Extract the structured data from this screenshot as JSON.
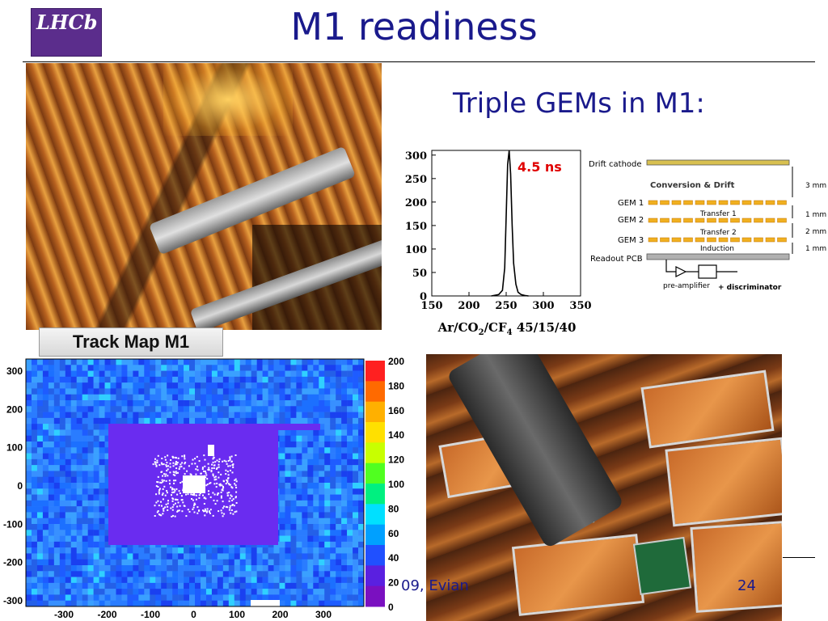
{
  "slide": {
    "title": "M1 readiness",
    "subtitle": "Triple GEMs in M1:",
    "logo_text": "LHCb",
    "footer_left": "09, Evian",
    "page_number": "24"
  },
  "colors": {
    "title": "#1a1a8c",
    "plot_line": "#000000",
    "annotation_red": "#e00000"
  },
  "gem_plot": {
    "annotation": "4.5 ns",
    "x_ticks": [
      "150",
      "200",
      "250",
      "300",
      "350"
    ],
    "y_ticks": [
      "0",
      "50",
      "100",
      "150",
      "200",
      "250",
      "300"
    ],
    "x_label": "Ar/CO",
    "x_label_sub1": "2",
    "x_label_mid": "/CF",
    "x_label_sub2": "4",
    "x_label_tail": " 45/15/40"
  },
  "chart_data": {
    "type": "line",
    "title": "",
    "xlabel": "Ar/CO2/CF4 45/15/40",
    "ylabel": "",
    "xlim": [
      150,
      350
    ],
    "ylim": [
      0,
      310
    ],
    "x": [
      230,
      240,
      245,
      248,
      250,
      252,
      254,
      256,
      258,
      260,
      263,
      266,
      270,
      275,
      280
    ],
    "values": [
      0,
      3,
      12,
      60,
      170,
      280,
      310,
      260,
      150,
      70,
      25,
      8,
      3,
      1,
      0
    ]
  },
  "gem_diagram": {
    "drift_cathode": "Drift cathode",
    "conversion_drift": "Conversion & Drift",
    "gem1": "GEM 1",
    "gem2": "GEM 2",
    "gem3": "GEM 3",
    "transfer1": "Transfer 1",
    "transfer2": "Transfer 2",
    "induction": "Induction",
    "readout_pcb": "Readout PCB",
    "gap_3mm": "3 mm",
    "gap_1mm_a": "1 mm",
    "gap_2mm": "2 mm",
    "gap_1mm_b": "1 mm",
    "preamp": "pre-amplifier",
    "discriminator": "+ discriminator"
  },
  "trackmap": {
    "label": "Track Map M1",
    "y_ticks": [
      "300",
      "200",
      "100",
      "0",
      "-100",
      "-200",
      "-300"
    ],
    "x_ticks": [
      "-300",
      "-200",
      "-100",
      "0",
      "100",
      "200",
      "300"
    ],
    "colorbar_ticks": [
      "200",
      "180",
      "160",
      "140",
      "120",
      "100",
      "80",
      "60",
      "40",
      "20",
      "0"
    ]
  }
}
